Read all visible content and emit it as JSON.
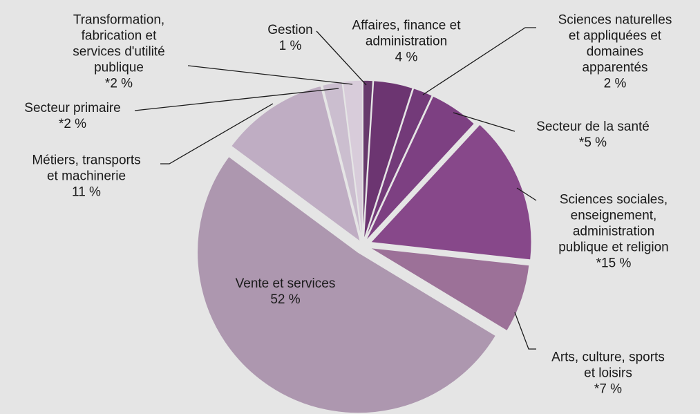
{
  "chart_data": {
    "type": "pie",
    "categories": [
      "Gestion",
      "Affaires, finance et\nadministration",
      "Sciences naturelles\net appliquées et\ndomaines\napparentés",
      "Secteur de la santé",
      "Sciences sociales,\nenseignement,\nadministration\npublique et religion",
      "Arts, culture, sports\net loisirs",
      "Vente et services",
      "Métiers, transports\net machinerie",
      "Secteur primaire",
      "Transformation,\nfabrication et\nservices d'utilité\npublique"
    ],
    "values": [
      1,
      4,
      2,
      5,
      15,
      7,
      52,
      11,
      2,
      2
    ],
    "value_labels": [
      "1 %",
      "4 %",
      "2 %",
      "*5 %",
      "*15 %",
      "*7 %",
      "52 %",
      "11 %",
      "*2 %",
      "*2 %"
    ],
    "colors": [
      "#673a6c",
      "#6c3571",
      "#733a79",
      "#7d4082",
      "#87488a",
      "#9c7198",
      "#ad97af",
      "#bfadc3",
      "#cbbecf",
      "#d8ccda"
    ]
  }
}
